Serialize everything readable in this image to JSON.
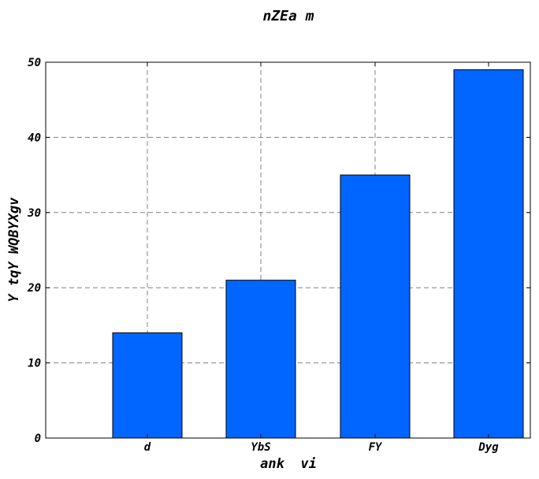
{
  "chart_data": {
    "type": "bar",
    "title": "nZEa m",
    "xlabel": "ank  vi",
    "ylabel": "Y tqY WQBYXgv",
    "categories": [
      "d",
      "YbS",
      "FY",
      "Dyg"
    ],
    "values": [
      14,
      21,
      35,
      49
    ],
    "ylim": [
      0,
      50
    ],
    "yticks": [
      0,
      10,
      20,
      30,
      40,
      50
    ],
    "grid": true,
    "bar_color": "#0066ff"
  }
}
